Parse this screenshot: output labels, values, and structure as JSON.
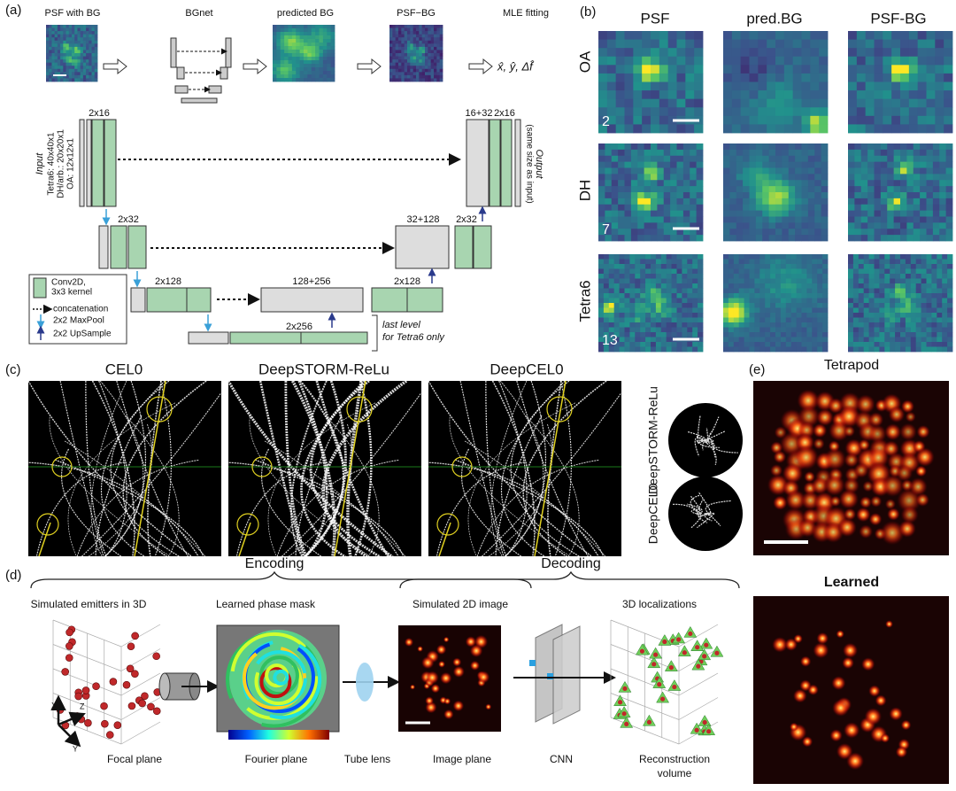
{
  "panel_a": {
    "label": "(a)",
    "pipeline": {
      "steps": [
        "PSF with BG",
        "BGnet",
        "predicted BG",
        "PSF−BG",
        "MLE fitting"
      ],
      "output": "x̂, ŷ, Δf̂"
    },
    "unet": {
      "input_title": "Input",
      "input_sizes": [
        "Tetra6: 40x40x1",
        "DH/arb.: 20x20x1",
        "OA: 12x12x1"
      ],
      "output_title": "Output",
      "output_note": "(same size as input)",
      "layer_labels": [
        "2x16",
        "16+32",
        "2x16",
        "2x32",
        "32+128",
        "2x32",
        "2x128",
        "128+256",
        "2x128",
        "2x256"
      ],
      "legend": [
        "Conv2D,",
        "3x3 kernel",
        "concatenation",
        "2x2 MaxPool",
        "2x2 UpSample"
      ],
      "note": [
        "last level",
        "for Tetra6 only"
      ]
    }
  },
  "panel_b": {
    "label": "(b)",
    "columns": [
      "PSF",
      "pred.BG",
      "PSF-BG"
    ],
    "rows": [
      "OA",
      "DH",
      "Tetra6"
    ],
    "numbers": [
      "2",
      "7",
      "13"
    ]
  },
  "panel_c": {
    "label": "(c)",
    "titles": [
      "CEL0",
      "DeepSTORM-ReLu",
      "DeepCEL0"
    ],
    "insets": [
      "DeepSTORM-ReLu",
      "DeepCEL0"
    ]
  },
  "panel_d": {
    "label": "(d)",
    "stages": [
      "Encoding",
      "Decoding"
    ],
    "top_labels": [
      "Simulated emitters in 3D",
      "Learned phase mask",
      "Simulated 2D image",
      "3D localizations"
    ],
    "bottom_labels": [
      "Focal plane",
      "Fourier plane",
      "Tube lens",
      "Image plane",
      "CNN",
      [
        "Reconstruction",
        "volume"
      ]
    ],
    "axes": [
      "X",
      "Z",
      "Y"
    ]
  },
  "panel_e": {
    "label": "(e)",
    "titles": [
      "Tetrapod",
      "Learned"
    ]
  }
}
